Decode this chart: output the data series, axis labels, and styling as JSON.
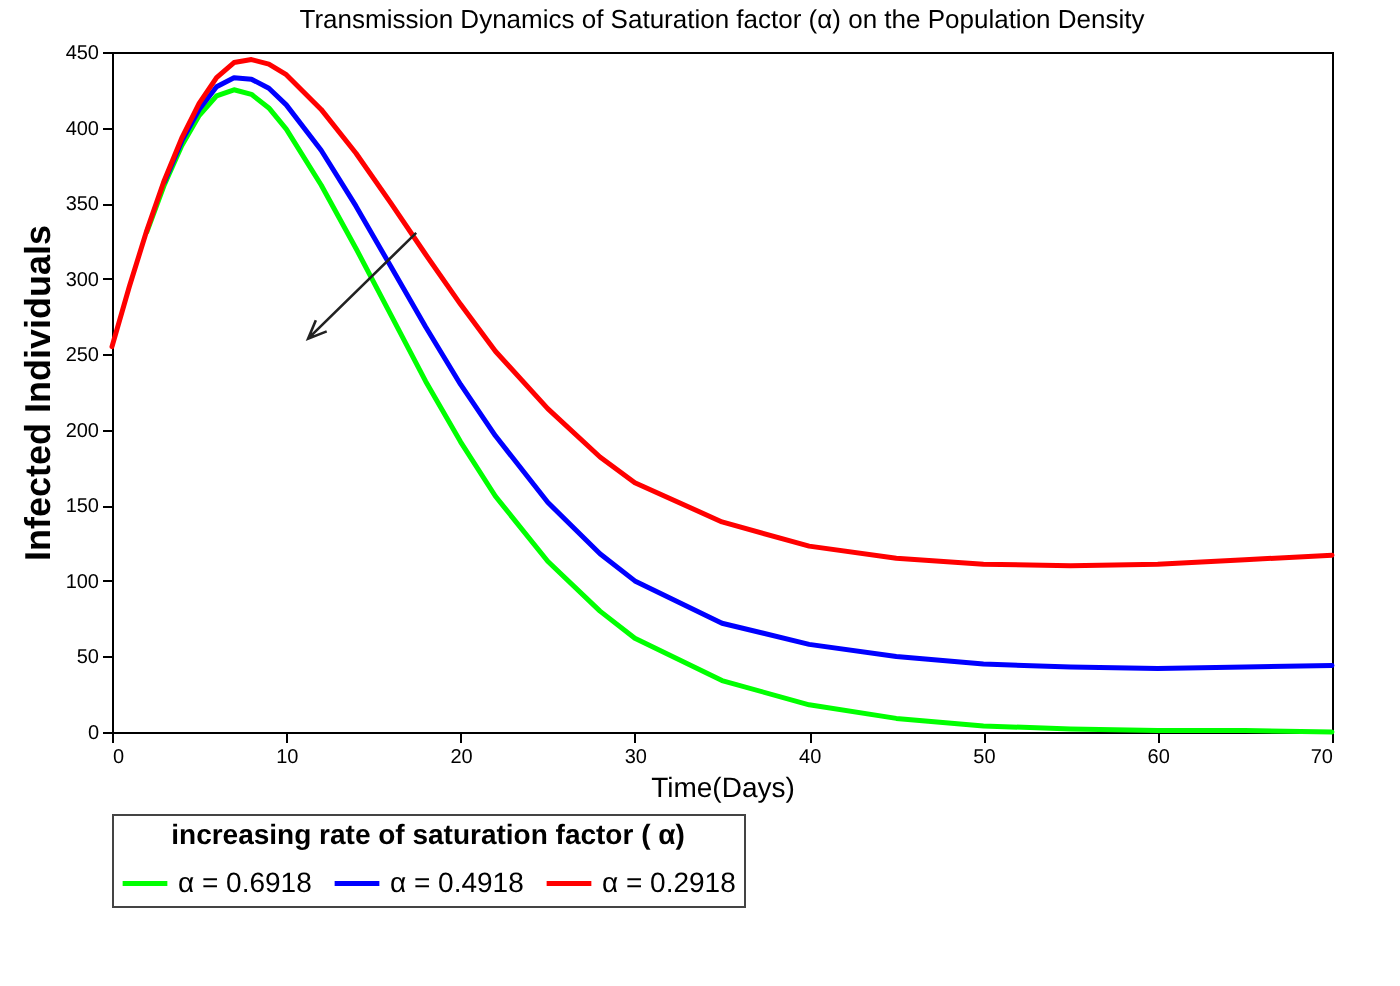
{
  "chart_data": {
    "type": "line",
    "title": "Transmission Dynamics of Saturation factor (α) on the Population Density",
    "xlabel": "Time(Days)",
    "ylabel": "Infected Individuals",
    "legend_title": "increasing rate of saturation factor ( α)",
    "x": [
      0,
      1,
      2,
      3,
      4,
      5,
      6,
      7,
      8,
      9,
      10,
      12,
      14,
      16,
      18,
      20,
      22,
      25,
      28,
      30,
      35,
      40,
      45,
      50,
      55,
      60,
      65,
      70
    ],
    "series": [
      {
        "name": "α = 0.6918",
        "color": "#00ff00",
        "values": [
          null,
          null,
          331,
          362,
          388,
          408,
          421,
          425,
          422,
          413,
          399,
          362,
          320,
          276,
          232,
          192,
          156,
          113,
          80,
          62,
          34,
          18,
          9,
          4,
          2,
          1,
          1,
          0
        ]
      },
      {
        "name": "α = 0.4918",
        "color": "#0000ff",
        "values": [
          null,
          null,
          null,
          364,
          391,
          412,
          427,
          433,
          432,
          426,
          415,
          385,
          348,
          308,
          268,
          230,
          196,
          152,
          118,
          100,
          72,
          58,
          50,
          45,
          43,
          42,
          43,
          44
        ]
      },
      {
        "name": "α = 0.2918",
        "color": "#ff0000",
        "values": [
          255,
          295,
          332,
          365,
          393,
          416,
          433,
          443,
          445,
          442,
          435,
          412,
          383,
          350,
          316,
          283,
          252,
          214,
          182,
          165,
          139,
          123,
          115,
          111,
          110,
          111,
          114,
          117
        ]
      }
    ],
    "xlim": [
      0,
      70
    ],
    "xticks": [
      0,
      10,
      20,
      30,
      40,
      50,
      60,
      70
    ],
    "ylim": [
      0,
      450
    ],
    "yticks": [
      0,
      50,
      100,
      150,
      200,
      250,
      300,
      350,
      400,
      450
    ],
    "grid": false,
    "legend": "bottom",
    "marker": "none",
    "line_style": "solid"
  }
}
